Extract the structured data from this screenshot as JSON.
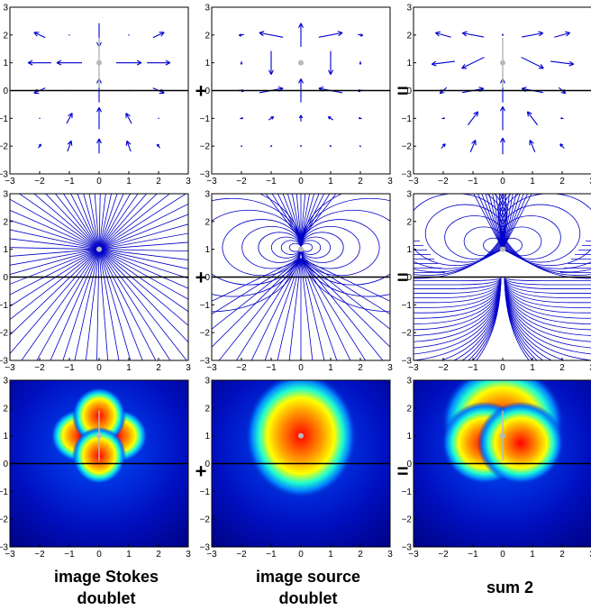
{
  "columns": [
    {
      "caption_lines": [
        "image Stokes",
        "doublet"
      ]
    },
    {
      "caption_lines": [
        "image source",
        "doublet"
      ]
    },
    {
      "caption_lines": [
        "sum 2"
      ]
    }
  ],
  "operators": {
    "plus": "+",
    "equals": "="
  },
  "axes": {
    "range": [
      -3,
      3
    ],
    "ticks": [
      -3,
      -2,
      -1,
      0,
      1,
      2,
      3
    ],
    "tick_labels": [
      "−3",
      "−2",
      "−1",
      "0",
      "1",
      "2",
      "3"
    ]
  },
  "rows": [
    "vector-field",
    "streamlines",
    "magnitude-map"
  ],
  "singularity": {
    "x": 0,
    "y": 1
  },
  "wall": {
    "y": 0
  },
  "colors": {
    "arrows": "#0000d0",
    "streamlines": "#0000c8",
    "singular_point": "#b8b8b8",
    "wall": "#000000"
  },
  "colormap": "jet"
}
